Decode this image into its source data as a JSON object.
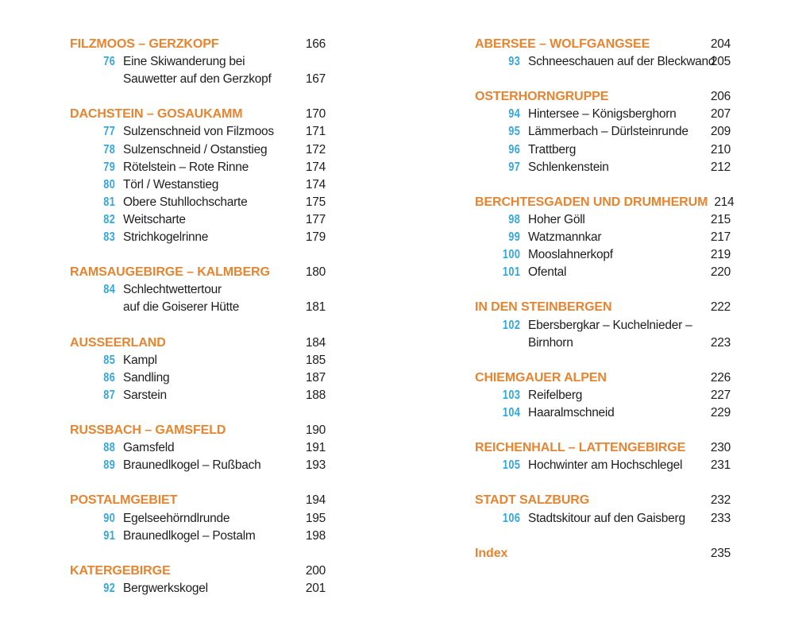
{
  "page": {
    "kind": "book-table-of-contents",
    "colors": {
      "background": "#ffffff",
      "section_heading": "#e8842f",
      "entry_number": "#2fa8df",
      "text": "#1d1d1f"
    }
  },
  "columns": [
    {
      "sections": [
        {
          "title": "FILZMOOS – GERZKOPF",
          "page": "166",
          "entries": [
            {
              "num": "76",
              "lines": [
                "Eine Skiwanderung bei",
                "Sauwetter auf den Gerzkopf"
              ],
              "page": "167"
            }
          ]
        },
        {
          "title": "DACHSTEIN – GOSAUKAMM",
          "page": "170",
          "entries": [
            {
              "num": "77",
              "lines": [
                "Sulzenschneid von Filzmoos"
              ],
              "page": "171"
            },
            {
              "num": "78",
              "lines": [
                "Sulzenschneid / Ostanstieg"
              ],
              "page": "172"
            },
            {
              "num": "79",
              "lines": [
                "Rötelstein – Rote Rinne"
              ],
              "page": "174"
            },
            {
              "num": "80",
              "lines": [
                "Törl / Westanstieg"
              ],
              "page": "174"
            },
            {
              "num": "81",
              "lines": [
                "Obere Stuhllochscharte"
              ],
              "page": "175"
            },
            {
              "num": "82",
              "lines": [
                "Weitscharte"
              ],
              "page": "177"
            },
            {
              "num": "83",
              "lines": [
                "Strichkogelrinne"
              ],
              "page": "179"
            }
          ]
        },
        {
          "title": "RAMSAUGEBIRGE – KALMBERG",
          "page": "180",
          "entries": [
            {
              "num": "84",
              "lines": [
                "Schlechtwettertour",
                "auf die Goiserer Hütte"
              ],
              "page": "181"
            }
          ]
        },
        {
          "title": "AUSSEERLAND",
          "page": "184",
          "entries": [
            {
              "num": "85",
              "lines": [
                "Kampl"
              ],
              "page": "185"
            },
            {
              "num": "86",
              "lines": [
                "Sandling"
              ],
              "page": "187"
            },
            {
              "num": "87",
              "lines": [
                "Sarstein"
              ],
              "page": "188"
            }
          ]
        },
        {
          "title": "RUSSBACH – GAMSFELD",
          "page": "190",
          "entries": [
            {
              "num": "88",
              "lines": [
                "Gamsfeld"
              ],
              "page": "191"
            },
            {
              "num": "89",
              "lines": [
                "Braunedlkogel – Rußbach"
              ],
              "page": "193"
            }
          ]
        },
        {
          "title": "POSTALMGEBIET",
          "page": "194",
          "entries": [
            {
              "num": "90",
              "lines": [
                "Egelseehörndlrunde"
              ],
              "page": "195"
            },
            {
              "num": "91",
              "lines": [
                "Braunedlkogel – Postalm"
              ],
              "page": "198"
            }
          ]
        },
        {
          "title": "KATERGEBIRGE",
          "page": "200",
          "entries": [
            {
              "num": "92",
              "lines": [
                "Bergwerkskogel"
              ],
              "page": "201"
            }
          ]
        }
      ]
    },
    {
      "sections": [
        {
          "title": "ABERSEE – WOLFGANGSEE",
          "page": "204",
          "entries": [
            {
              "num": "93",
              "lines": [
                "Schneeschauen auf der Bleckwand"
              ],
              "page": "205"
            }
          ]
        },
        {
          "title": "OSTERHORNGRUPPE",
          "page": "206",
          "entries": [
            {
              "num": "94",
              "lines": [
                "Hintersee – Königsberghorn"
              ],
              "page": "207"
            },
            {
              "num": "95",
              "lines": [
                "Lämmerbach – Dürlsteinrunde"
              ],
              "page": "209"
            },
            {
              "num": "96",
              "lines": [
                "Trattberg"
              ],
              "page": "210"
            },
            {
              "num": "97",
              "lines": [
                "Schlenkenstein"
              ],
              "page": "212"
            }
          ]
        },
        {
          "title": "BERCHTESGADEN UND DRUMHERUM",
          "page": "214",
          "entries": [
            {
              "num": "98",
              "lines": [
                "Hoher Göll"
              ],
              "page": "215"
            },
            {
              "num": "99",
              "lines": [
                "Watzmannkar"
              ],
              "page": "217"
            },
            {
              "num": "100",
              "lines": [
                "Mooslahnerkopf"
              ],
              "page": "219"
            },
            {
              "num": "101",
              "lines": [
                "Ofental"
              ],
              "page": "220"
            }
          ]
        },
        {
          "title": "IN DEN STEINBERGEN",
          "page": "222",
          "entries": [
            {
              "num": "102",
              "lines": [
                "Ebersbergkar – Kuchelnieder –",
                "Birnhorn"
              ],
              "page": "223"
            }
          ]
        },
        {
          "title": "CHIEMGAUER ALPEN",
          "page": "226",
          "entries": [
            {
              "num": "103",
              "lines": [
                "Reifelberg"
              ],
              "page": "227"
            },
            {
              "num": "104",
              "lines": [
                "Haaralmschneid"
              ],
              "page": "229"
            }
          ]
        },
        {
          "title": "REICHENHALL – LATTENGEBIRGE",
          "page": "230",
          "entries": [
            {
              "num": "105",
              "lines": [
                "Hochwinter am Hochschlegel"
              ],
              "page": "231"
            }
          ]
        },
        {
          "title": "STADT SALZBURG",
          "page": "232",
          "entries": [
            {
              "num": "106",
              "lines": [
                "Stadtskitour auf den Gaisberg"
              ],
              "page": "233"
            }
          ]
        },
        {
          "title": "Index",
          "page": "235",
          "entries": []
        }
      ]
    }
  ]
}
